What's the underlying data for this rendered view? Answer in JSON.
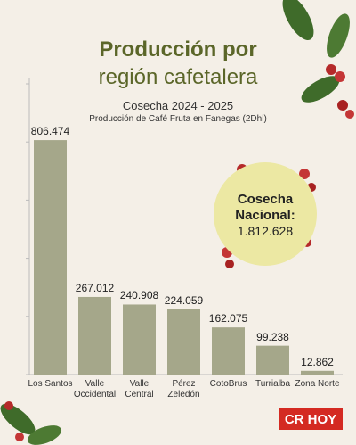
{
  "chart_data": {
    "type": "bar",
    "title": [
      "Producción por",
      "región cafetalera"
    ],
    "subtitle": "Cosecha 2024 - 2025",
    "caption": "Producción de Café Fruta en Fanegas (2Dhl)",
    "categories": [
      "Los Santos",
      "Valle Occidental",
      "Valle Central",
      "Pérez Zeledón",
      "CotoBrus",
      "Turrialba",
      "Zona Norte"
    ],
    "values": [
      806474,
      267012,
      240908,
      224059,
      162075,
      99238,
      12862
    ],
    "value_labels": [
      "806.474",
      "267.012",
      "240.908",
      "224.059",
      "162.075",
      "99.238",
      "12.862"
    ],
    "color": "#a5a78a",
    "ylim": [
      0,
      1000000
    ],
    "yticks": [
      0,
      200000,
      400000,
      600000,
      800000,
      1000000
    ],
    "total": {
      "label": "Cosecha Nacional:",
      "value": 1812628,
      "value_label": "1.812.628"
    },
    "source": "CR HOY"
  }
}
